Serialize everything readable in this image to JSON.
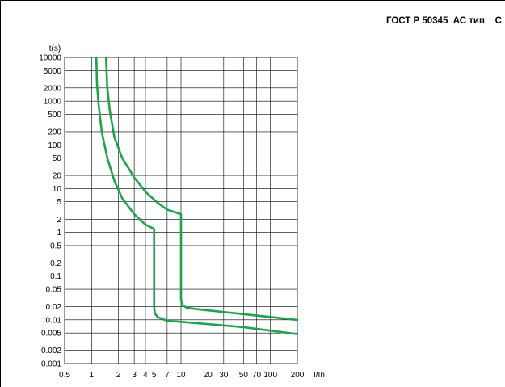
{
  "header": {
    "title": "ГОСТ Р 50345  АС тип    С"
  },
  "chart_data": {
    "type": "line",
    "title": "ГОСТ Р 50345  АС тип    С",
    "xlabel": "I/In",
    "ylabel": "t(s)",
    "xscale": "log",
    "yscale": "log",
    "xlim": [
      0.5,
      200
    ],
    "ylim": [
      0.001,
      10000
    ],
    "grid": true,
    "legend": "none",
    "x_ticks": [
      "0.5",
      "1",
      "2",
      "3",
      "4",
      "5",
      "7",
      "10",
      "20",
      "30",
      "50",
      "70",
      "100",
      "200"
    ],
    "y_ticks": [
      "0.001",
      "0.002",
      "0.005",
      "0.01",
      "0.02",
      "0.05",
      "0.1",
      "0.2",
      "0.5",
      "1",
      "2",
      "5",
      "10",
      "20",
      "50",
      "100",
      "200",
      "500",
      "1000",
      "2000",
      "5000",
      "10000"
    ],
    "color": "#19a64a",
    "series": [
      {
        "x": [
          1.13,
          1.15,
          1.2,
          1.3,
          1.5,
          1.8,
          2.2,
          3.0,
          4.0,
          5.0,
          5.0,
          5.1,
          5.5,
          7,
          10,
          50,
          200
        ],
        "y": [
          10000,
          2500,
          800,
          200,
          50,
          15,
          6,
          2.6,
          1.5,
          1.2,
          0.02,
          0.014,
          0.0115,
          0.0095,
          0.009,
          0.0068,
          0.0047
        ]
      },
      {
        "x": [
          1.45,
          1.5,
          1.6,
          1.8,
          2.2,
          3.0,
          4.0,
          5.5,
          7.0,
          10.0,
          10.0,
          10.3,
          11.5,
          15,
          50,
          200
        ],
        "y": [
          10000,
          2000,
          600,
          150,
          50,
          18,
          8.5,
          4.7,
          3.3,
          2.6,
          0.03,
          0.022,
          0.019,
          0.0175,
          0.0135,
          0.01
        ]
      }
    ]
  }
}
